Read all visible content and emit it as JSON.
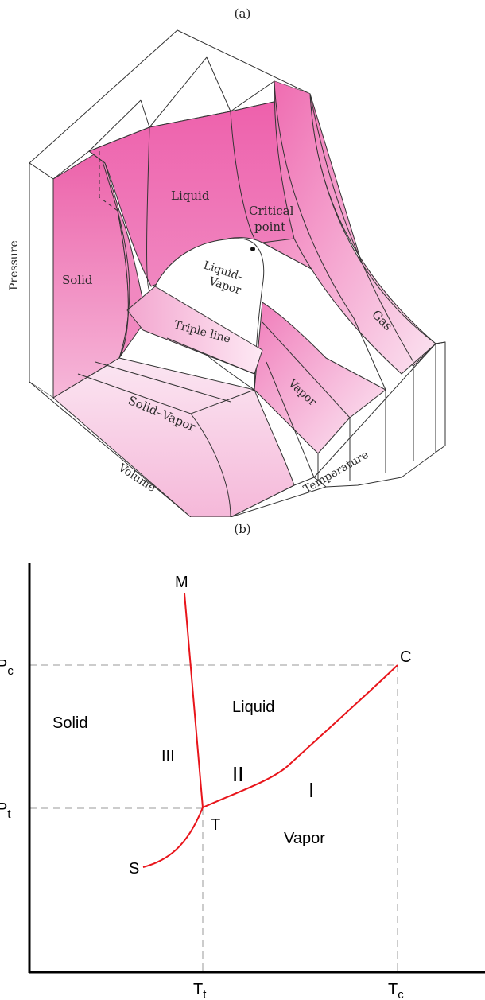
{
  "figure_a": {
    "caption": "(a)",
    "labels": {
      "pressure": "Pressure",
      "volume": "Volume",
      "temperature": "Temperature",
      "solid": "Solid",
      "liquid": "Liquid",
      "critical_line1": "Critical",
      "critical_line2": "point",
      "liquid_vapor_line1": "Liquid–",
      "liquid_vapor_line2": "Vapor",
      "triple_line": "Triple line",
      "vapor": "Vapor",
      "gas": "Gas",
      "solid_vapor": "Solid–Vapor"
    },
    "colors": {
      "surface": "#ee6fb0",
      "surface_light": "#fbe3f0",
      "outline": "#333333"
    }
  },
  "figure_b": {
    "caption": "(b)",
    "labels": {
      "p_c": "P",
      "p_c_sub": "c",
      "p_t": "P",
      "p_t_sub": "t",
      "t_t": "T",
      "t_t_sub": "t",
      "t_c": "T",
      "t_c_sub": "c",
      "point_m": "M",
      "point_c": "C",
      "point_t": "T",
      "point_s": "S",
      "region_solid": "Solid",
      "region_liquid": "Liquid",
      "region_vapor": "Vapor",
      "curve_i": "I",
      "curve_ii": "II",
      "curve_iii": "III"
    },
    "colors": {
      "curve": "#e8151b",
      "axis": "#000000",
      "guide": "#9a9a9a"
    }
  }
}
